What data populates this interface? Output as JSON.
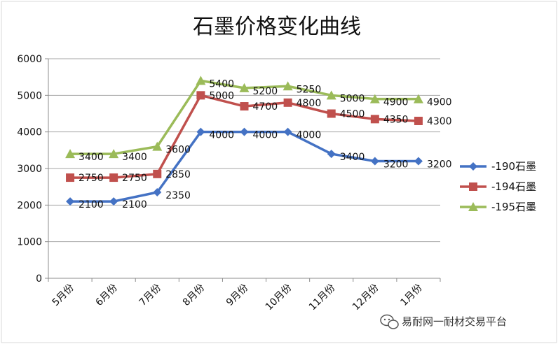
{
  "chart_data": {
    "type": "line",
    "title": "石墨价格变化曲线",
    "categories": [
      "5月份",
      "6月份",
      "7月份",
      "8月份",
      "9月份",
      "10月份",
      "11月份",
      "12月份",
      "1月份"
    ],
    "series": [
      {
        "name": "-190石墨",
        "color": "#4472c4",
        "marker": "diamond",
        "values": [
          2100,
          2100,
          2350,
          4000,
          4000,
          4000,
          3400,
          3200,
          3200
        ]
      },
      {
        "name": "-194石墨",
        "color": "#c0504d",
        "marker": "square",
        "values": [
          2750,
          2750,
          2850,
          5000,
          4700,
          4800,
          4500,
          4350,
          4300
        ]
      },
      {
        "name": "-195石墨",
        "color": "#9bbb59",
        "marker": "triangle",
        "values": [
          3400,
          3400,
          3600,
          5400,
          5200,
          5250,
          5000,
          4900,
          4900
        ]
      }
    ],
    "ylim": [
      0,
      6000
    ],
    "yticks": [
      0,
      1000,
      2000,
      3000,
      4000,
      5000,
      6000
    ],
    "grid": true,
    "legend": "right"
  },
  "watermark": {
    "text": "易耐网一耐材交易平台",
    "icon": "wechat-icon"
  }
}
